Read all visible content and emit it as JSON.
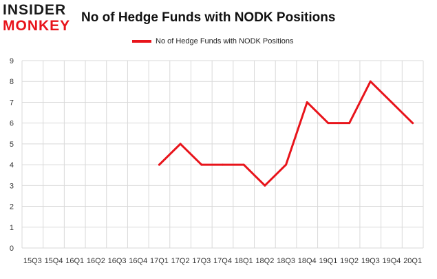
{
  "logo": {
    "line1": "INSIDER",
    "line2": "MONKEY"
  },
  "chart_data": {
    "type": "line",
    "title": "No of Hedge Funds with NODK Positions",
    "xlabel": "",
    "ylabel": "",
    "categories": [
      "15Q3",
      "15Q4",
      "16Q1",
      "16Q2",
      "16Q3",
      "16Q4",
      "17Q1",
      "17Q2",
      "17Q3",
      "17Q4",
      "18Q1",
      "18Q2",
      "18Q3",
      "18Q4",
      "19Q1",
      "19Q2",
      "19Q3",
      "19Q4",
      "20Q1"
    ],
    "series": [
      {
        "name": "No of Hedge Funds with NODK Positions",
        "values": [
          null,
          null,
          null,
          null,
          null,
          null,
          4,
          5,
          4,
          4,
          4,
          3,
          4,
          7,
          6,
          6,
          8,
          7,
          6
        ],
        "color": "#e8141b"
      }
    ],
    "ylim": [
      0,
      9
    ],
    "yticks": [
      0,
      1,
      2,
      3,
      4,
      5,
      6,
      7,
      8,
      9
    ],
    "grid": true,
    "legend_position": "top"
  }
}
